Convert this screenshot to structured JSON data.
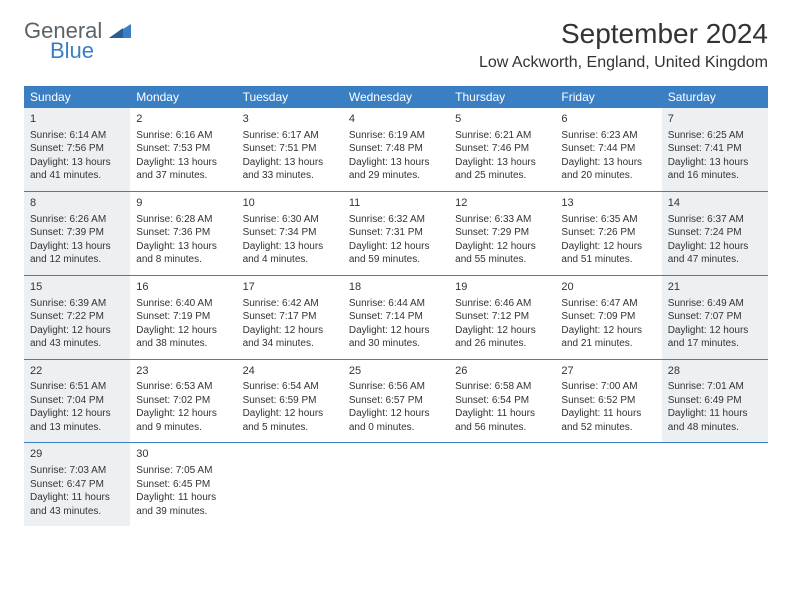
{
  "brand": {
    "part1": "General",
    "part2": "Blue"
  },
  "title": "September 2024",
  "location": "Low Ackworth, England, United Kingdom",
  "colors": {
    "accent": "#3a7fc4",
    "header_text": "#ffffff",
    "shaded_bg": "#edf0f2",
    "text": "#333333",
    "logo_gray": "#5b6369"
  },
  "day_names": [
    "Sunday",
    "Monday",
    "Tuesday",
    "Wednesday",
    "Thursday",
    "Friday",
    "Saturday"
  ],
  "weeks": [
    [
      {
        "n": "1",
        "shaded": true,
        "sunrise": "6:14 AM",
        "sunset": "7:56 PM",
        "dl": "13 hours and 41 minutes."
      },
      {
        "n": "2",
        "shaded": false,
        "sunrise": "6:16 AM",
        "sunset": "7:53 PM",
        "dl": "13 hours and 37 minutes."
      },
      {
        "n": "3",
        "shaded": false,
        "sunrise": "6:17 AM",
        "sunset": "7:51 PM",
        "dl": "13 hours and 33 minutes."
      },
      {
        "n": "4",
        "shaded": false,
        "sunrise": "6:19 AM",
        "sunset": "7:48 PM",
        "dl": "13 hours and 29 minutes."
      },
      {
        "n": "5",
        "shaded": false,
        "sunrise": "6:21 AM",
        "sunset": "7:46 PM",
        "dl": "13 hours and 25 minutes."
      },
      {
        "n": "6",
        "shaded": false,
        "sunrise": "6:23 AM",
        "sunset": "7:44 PM",
        "dl": "13 hours and 20 minutes."
      },
      {
        "n": "7",
        "shaded": true,
        "sunrise": "6:25 AM",
        "sunset": "7:41 PM",
        "dl": "13 hours and 16 minutes."
      }
    ],
    [
      {
        "n": "8",
        "shaded": true,
        "sunrise": "6:26 AM",
        "sunset": "7:39 PM",
        "dl": "13 hours and 12 minutes."
      },
      {
        "n": "9",
        "shaded": false,
        "sunrise": "6:28 AM",
        "sunset": "7:36 PM",
        "dl": "13 hours and 8 minutes."
      },
      {
        "n": "10",
        "shaded": false,
        "sunrise": "6:30 AM",
        "sunset": "7:34 PM",
        "dl": "13 hours and 4 minutes."
      },
      {
        "n": "11",
        "shaded": false,
        "sunrise": "6:32 AM",
        "sunset": "7:31 PM",
        "dl": "12 hours and 59 minutes."
      },
      {
        "n": "12",
        "shaded": false,
        "sunrise": "6:33 AM",
        "sunset": "7:29 PM",
        "dl": "12 hours and 55 minutes."
      },
      {
        "n": "13",
        "shaded": false,
        "sunrise": "6:35 AM",
        "sunset": "7:26 PM",
        "dl": "12 hours and 51 minutes."
      },
      {
        "n": "14",
        "shaded": true,
        "sunrise": "6:37 AM",
        "sunset": "7:24 PM",
        "dl": "12 hours and 47 minutes."
      }
    ],
    [
      {
        "n": "15",
        "shaded": true,
        "sunrise": "6:39 AM",
        "sunset": "7:22 PM",
        "dl": "12 hours and 43 minutes."
      },
      {
        "n": "16",
        "shaded": false,
        "sunrise": "6:40 AM",
        "sunset": "7:19 PM",
        "dl": "12 hours and 38 minutes."
      },
      {
        "n": "17",
        "shaded": false,
        "sunrise": "6:42 AM",
        "sunset": "7:17 PM",
        "dl": "12 hours and 34 minutes."
      },
      {
        "n": "18",
        "shaded": false,
        "sunrise": "6:44 AM",
        "sunset": "7:14 PM",
        "dl": "12 hours and 30 minutes."
      },
      {
        "n": "19",
        "shaded": false,
        "sunrise": "6:46 AM",
        "sunset": "7:12 PM",
        "dl": "12 hours and 26 minutes."
      },
      {
        "n": "20",
        "shaded": false,
        "sunrise": "6:47 AM",
        "sunset": "7:09 PM",
        "dl": "12 hours and 21 minutes."
      },
      {
        "n": "21",
        "shaded": true,
        "sunrise": "6:49 AM",
        "sunset": "7:07 PM",
        "dl": "12 hours and 17 minutes."
      }
    ],
    [
      {
        "n": "22",
        "shaded": true,
        "sunrise": "6:51 AM",
        "sunset": "7:04 PM",
        "dl": "12 hours and 13 minutes."
      },
      {
        "n": "23",
        "shaded": false,
        "sunrise": "6:53 AM",
        "sunset": "7:02 PM",
        "dl": "12 hours and 9 minutes."
      },
      {
        "n": "24",
        "shaded": false,
        "sunrise": "6:54 AM",
        "sunset": "6:59 PM",
        "dl": "12 hours and 5 minutes."
      },
      {
        "n": "25",
        "shaded": false,
        "sunrise": "6:56 AM",
        "sunset": "6:57 PM",
        "dl": "12 hours and 0 minutes."
      },
      {
        "n": "26",
        "shaded": false,
        "sunrise": "6:58 AM",
        "sunset": "6:54 PM",
        "dl": "11 hours and 56 minutes."
      },
      {
        "n": "27",
        "shaded": false,
        "sunrise": "7:00 AM",
        "sunset": "6:52 PM",
        "dl": "11 hours and 52 minutes."
      },
      {
        "n": "28",
        "shaded": true,
        "sunrise": "7:01 AM",
        "sunset": "6:49 PM",
        "dl": "11 hours and 48 minutes."
      }
    ],
    [
      {
        "n": "29",
        "shaded": true,
        "sunrise": "7:03 AM",
        "sunset": "6:47 PM",
        "dl": "11 hours and 43 minutes."
      },
      {
        "n": "30",
        "shaded": false,
        "sunrise": "7:05 AM",
        "sunset": "6:45 PM",
        "dl": "11 hours and 39 minutes."
      },
      null,
      null,
      null,
      null,
      null
    ]
  ],
  "labels": {
    "sunrise_prefix": "Sunrise: ",
    "sunset_prefix": "Sunset: ",
    "daylight_prefix": "Daylight: "
  }
}
